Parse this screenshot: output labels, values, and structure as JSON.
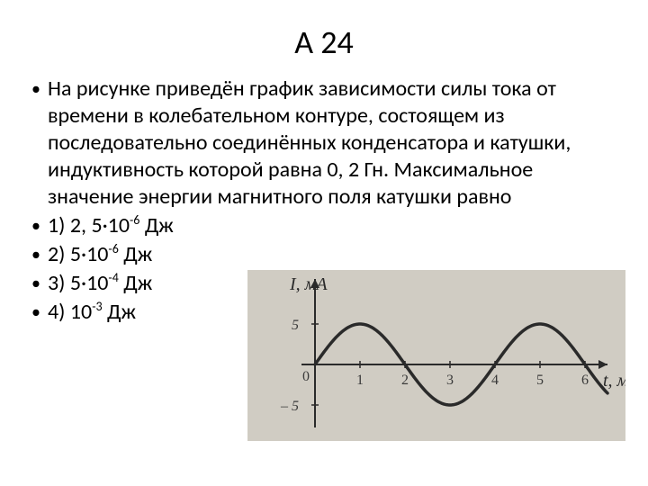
{
  "title": "А 24",
  "problem_text": "На  рисунке приведён график зависимости силы тока от времени в колебательном контуре, состоящем из последовательно соединённых конденсатора и катушки, индуктивность  которой  равна  0, 2 Гн. Максимальное значение энергии магнитного поля катушки равно",
  "options": [
    {
      "label": "1) 2, 5·10",
      "exp": "-6",
      "unit": " Дж"
    },
    {
      "label": "2) 5·10",
      "exp": "-6",
      "unit": " Дж"
    },
    {
      "label": "3) 5·10",
      "exp": "-4",
      "unit": " Дж"
    },
    {
      "label": "4) 10",
      "exp": "-3",
      "unit": " Дж"
    }
  ],
  "chart": {
    "type": "line",
    "y_label": "I, мА",
    "x_label": "t, мс",
    "y_ticks": [
      5,
      -5
    ],
    "x_ticks": [
      1,
      2,
      3,
      4,
      5,
      6
    ],
    "amplitude": 5,
    "period_ms": 4,
    "x_range": [
      0,
      6.5
    ],
    "y_range": [
      -7,
      10
    ],
    "background_color": "#d0ccc3",
    "axis_color": "#2a2a2a",
    "curve_color": "#2a2a2a",
    "curve_width": 3.5,
    "tick_label_color": "#3a3a3a",
    "label_fontsize": 20,
    "tick_fontsize": 16,
    "plot": {
      "origin_x": 75,
      "origin_y": 105,
      "x_scale": 50,
      "y_scale": 9
    }
  }
}
